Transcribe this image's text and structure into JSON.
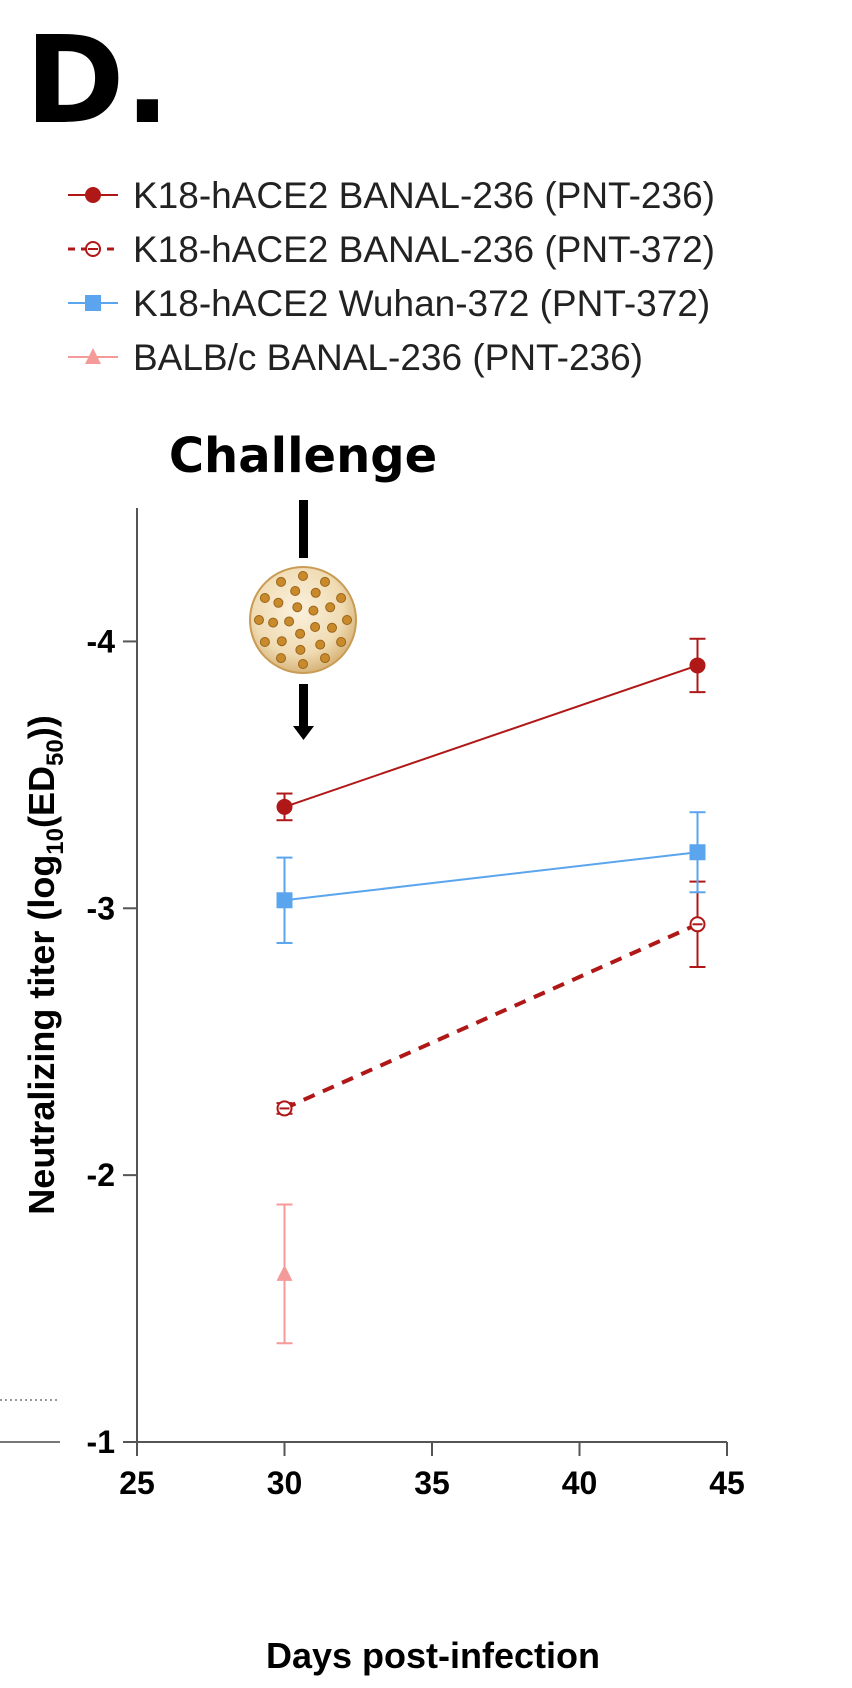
{
  "panel_label": "D.",
  "annotation": {
    "text": "Challenge",
    "icon": "virus-icon"
  },
  "colors": {
    "dark_red": "#b01818",
    "blue": "#5aa5ee",
    "pink": "#f49a98",
    "axis": "#555555"
  },
  "chart_data": {
    "type": "line",
    "xlabel": "Days post-infection",
    "ylabel_main": "Neutralizing titer (log",
    "ylabel_sub1": "10",
    "ylabel_mid": "(ED",
    "ylabel_sub2": "50",
    "ylabel_end": "))",
    "xlim": [
      25,
      45
    ],
    "ylim": [
      -1,
      -4.5
    ],
    "xticks": [
      25,
      30,
      35,
      40,
      45
    ],
    "xtick_labels": [
      "25",
      "30",
      "35",
      "40",
      "45"
    ],
    "yticks": [
      -4,
      -3,
      -2,
      -1
    ],
    "ytick_labels": [
      "-4",
      "-3",
      "-2",
      "-1"
    ],
    "grid": false,
    "legend_position": "top",
    "series": [
      {
        "name": "K18-hACE2 BANAL-236 (PNT-236)",
        "color": "#b01818",
        "marker": "circle-filled",
        "line": "solid",
        "x": [
          30,
          44
        ],
        "y": [
          -3.38,
          -3.91
        ],
        "err": [
          0.05,
          0.1
        ]
      },
      {
        "name": "K18-hACE2 BANAL-236 (PNT-372)",
        "color": "#b01818",
        "marker": "circle-open",
        "line": "dashed",
        "x": [
          30,
          44
        ],
        "y": [
          -2.25,
          -2.94
        ],
        "err": [
          0.02,
          0.16
        ]
      },
      {
        "name": "K18-hACE2 Wuhan-372 (PNT-372)",
        "color": "#5aa5ee",
        "marker": "square",
        "line": "solid",
        "x": [
          30,
          44
        ],
        "y": [
          -3.03,
          -3.21
        ],
        "err": [
          0.16,
          0.15
        ]
      },
      {
        "name": "BALB/c BANAL-236 (PNT-236)",
        "color": "#f49a98",
        "marker": "triangle",
        "line": "none",
        "x": [
          30
        ],
        "y": [
          -1.63
        ],
        "err": [
          0.26
        ]
      }
    ]
  }
}
